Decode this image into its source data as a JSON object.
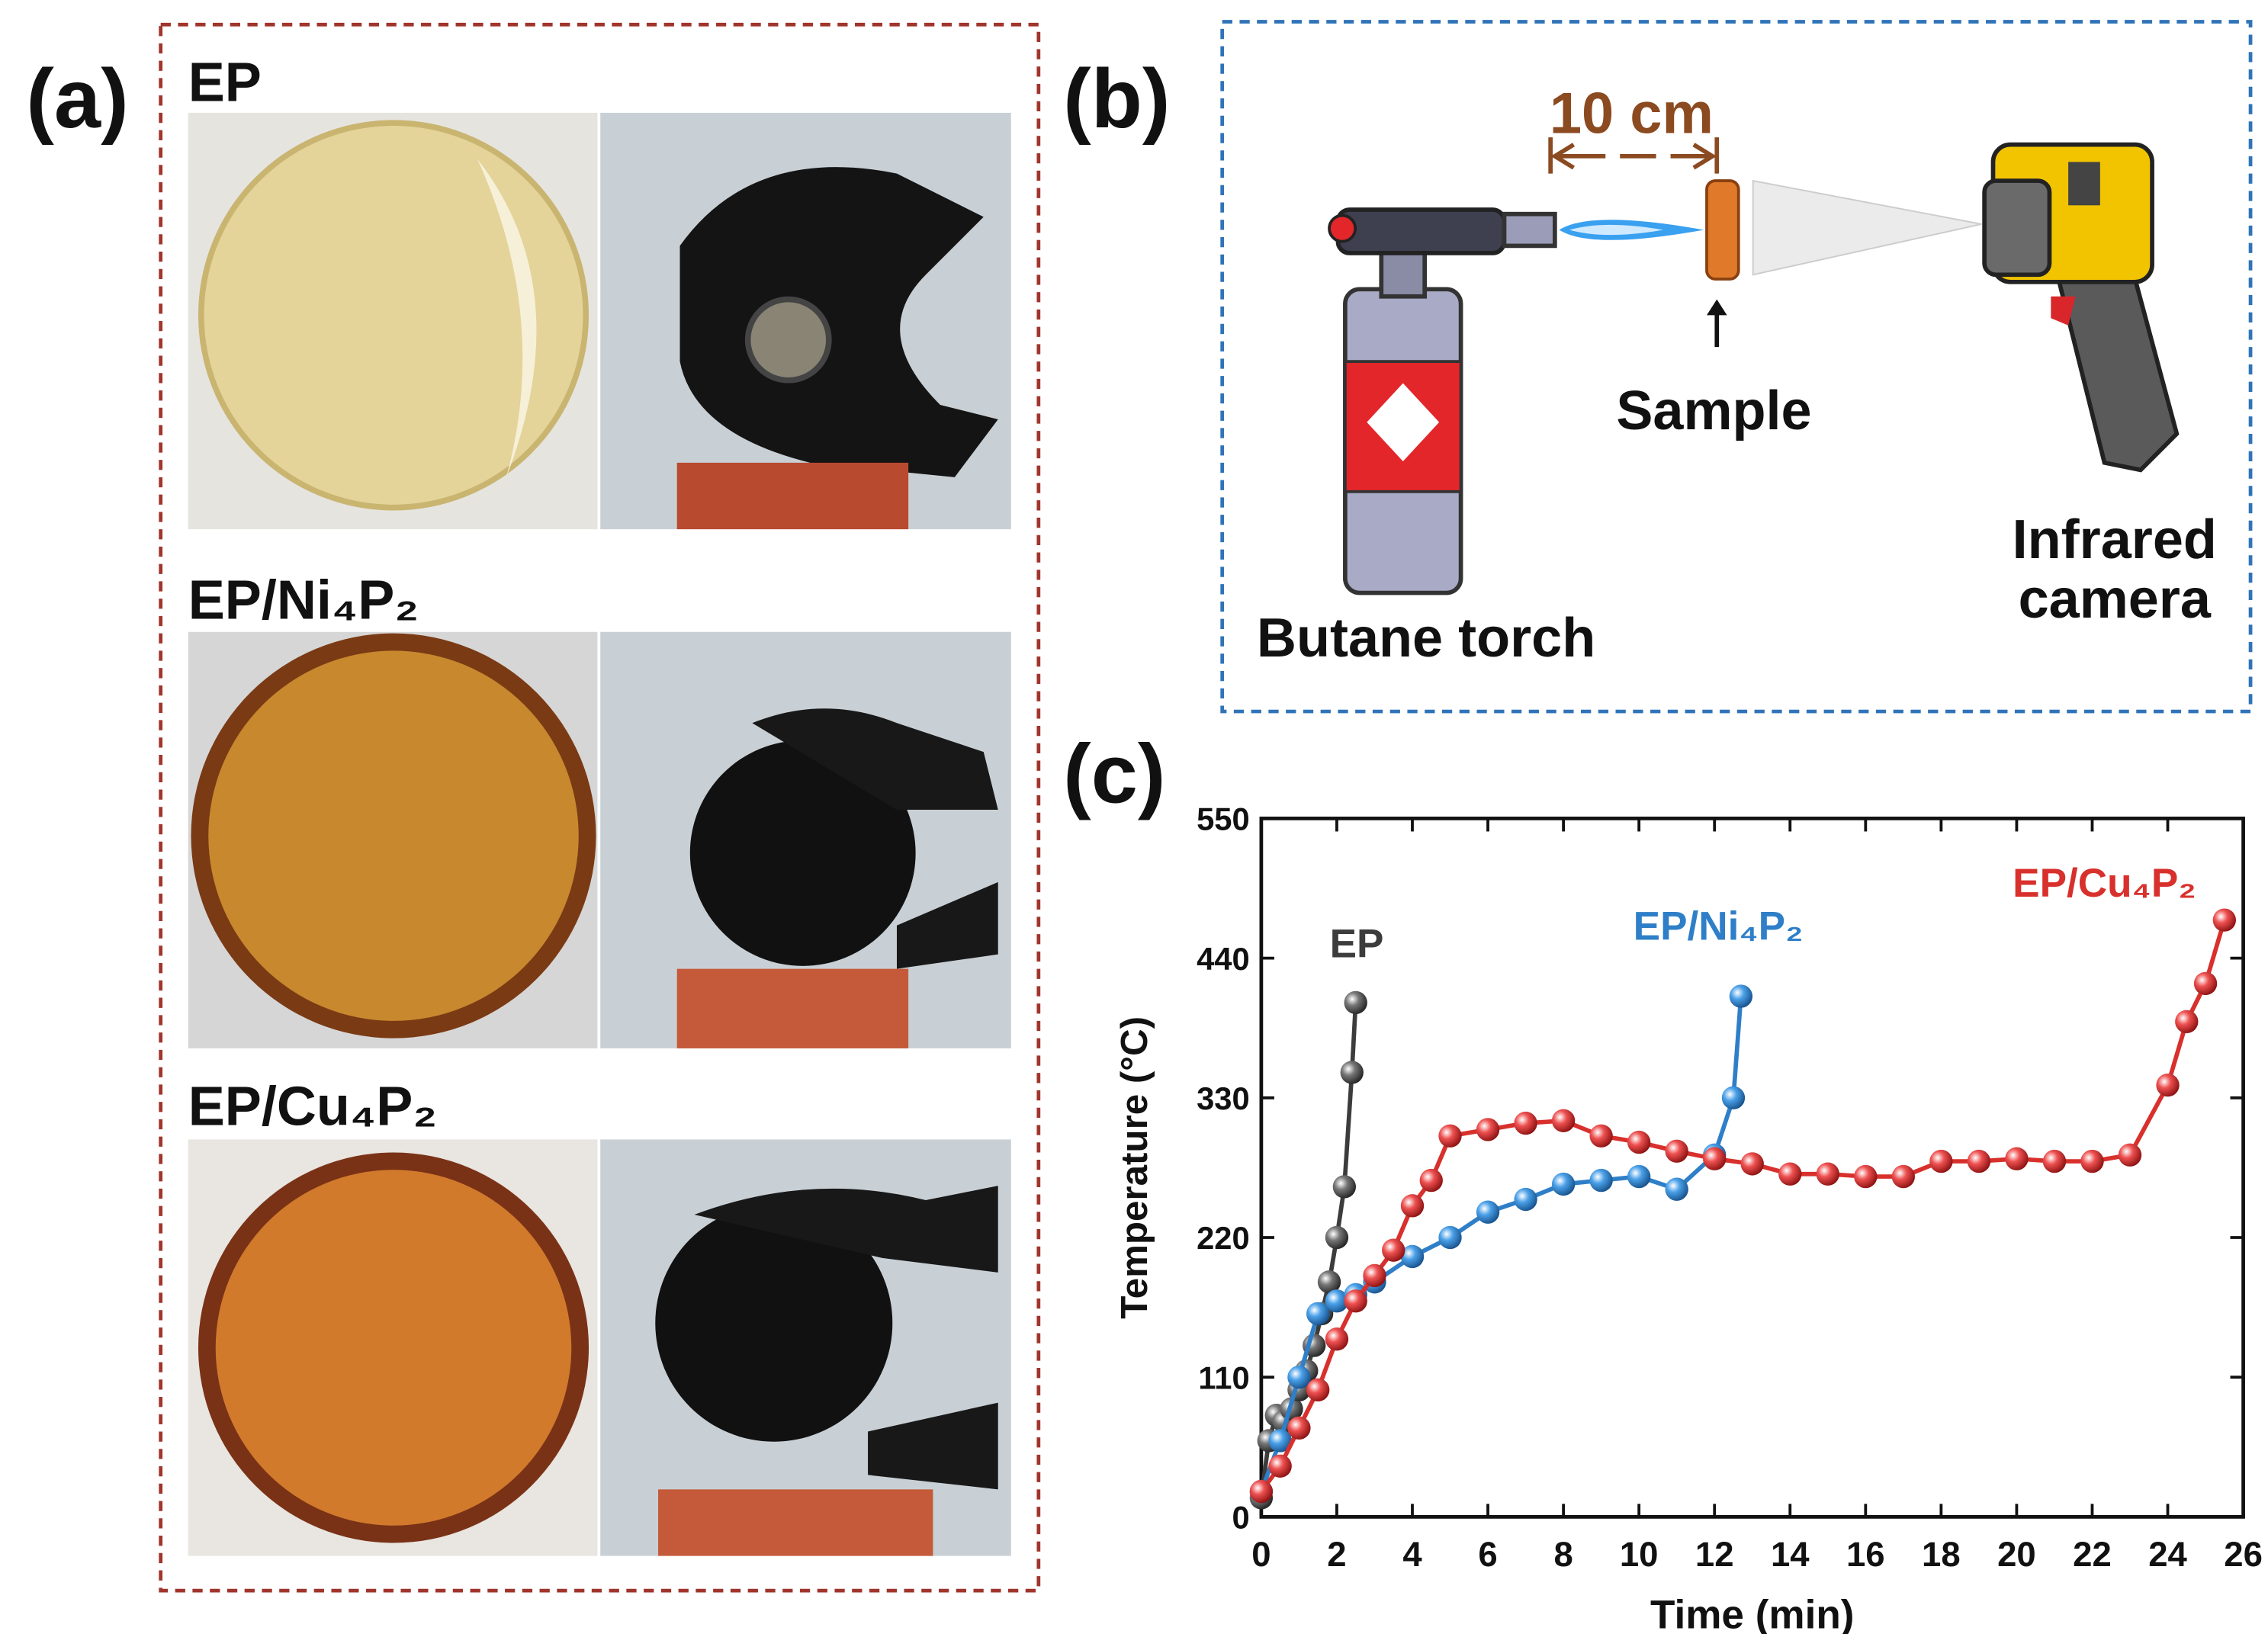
{
  "panels": {
    "a": "(a)",
    "b": "(b)",
    "c": "(c)"
  },
  "photos": {
    "captions": [
      "EP",
      "EP/Ni₄P₂",
      "EP/Cu₄P₂"
    ]
  },
  "diagram": {
    "distance": "10 cm",
    "sample": "Sample",
    "torch": "Butane torch",
    "camera": [
      "Infrared",
      "camera"
    ]
  },
  "chart_data": {
    "type": "line",
    "xlabel": "Time (min)",
    "ylabel": "Temperature (°C)",
    "xlim": [
      0,
      26
    ],
    "xticks": [
      0,
      2,
      4,
      6,
      8,
      10,
      12,
      14,
      16,
      18,
      20,
      22,
      24,
      26
    ],
    "ylim": [
      0,
      550
    ],
    "yticks": [
      0,
      110,
      220,
      330,
      440,
      550
    ],
    "series": [
      {
        "name": "EP",
        "color": "#3c3c3c",
        "x": [
          0,
          0.2,
          0.4,
          0.6,
          0.8,
          1.0,
          1.2,
          1.4,
          1.6,
          1.8,
          2.0,
          2.2,
          2.4,
          2.5
        ],
        "values": [
          15,
          60,
          80,
          75,
          85,
          100,
          115,
          135,
          160,
          185,
          220,
          260,
          350,
          405
        ]
      },
      {
        "name": "EP/Ni₄P₂",
        "color": "#2f7fc8",
        "x": [
          0,
          0.5,
          1,
          1.5,
          2,
          2.5,
          3,
          4,
          5,
          6,
          7,
          8,
          9,
          10,
          11,
          12,
          12.5,
          12.7
        ],
        "values": [
          20,
          60,
          110,
          160,
          170,
          175,
          185,
          205,
          220,
          240,
          250,
          262,
          265,
          268,
          258,
          285,
          330,
          410
        ]
      },
      {
        "name": "EP/Cu₄P₂",
        "color": "#d8302c",
        "x": [
          0,
          0.5,
          1,
          1.5,
          2,
          2.5,
          3,
          3.5,
          4,
          4.5,
          5,
          6,
          7,
          8,
          9,
          10,
          11,
          12,
          13,
          14,
          15,
          16,
          17,
          18,
          19,
          20,
          21,
          22,
          23,
          24,
          24.5,
          25,
          25.5
        ],
        "values": [
          20,
          40,
          70,
          100,
          140,
          170,
          190,
          210,
          245,
          265,
          300,
          305,
          310,
          312,
          300,
          295,
          288,
          282,
          278,
          270,
          270,
          268,
          268,
          280,
          280,
          282,
          280,
          280,
          285,
          340,
          390,
          420,
          470
        ]
      }
    ]
  }
}
